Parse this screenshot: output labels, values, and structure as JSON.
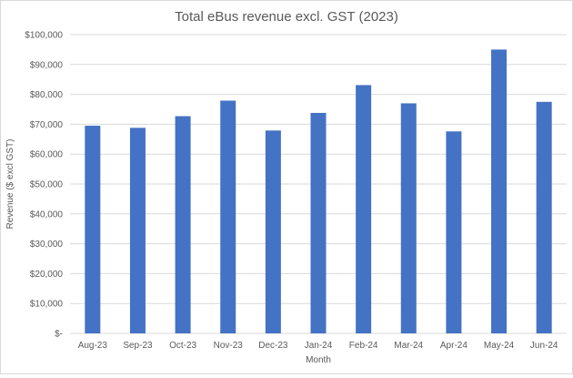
{
  "chart_data": {
    "type": "bar",
    "title": "Total eBus revenue excl. GST (2023)",
    "xlabel": "Month",
    "ylabel": "Revenue ($ excl GST)",
    "ylim": [
      0,
      100000
    ],
    "yticks": [
      0,
      10000,
      20000,
      30000,
      40000,
      50000,
      60000,
      70000,
      80000,
      90000,
      100000
    ],
    "ytick_labels": [
      "$-",
      "$10,000",
      "$20,000",
      "$30,000",
      "$40,000",
      "$50,000",
      "$60,000",
      "$70,000",
      "$80,000",
      "$90,000",
      "$100,000"
    ],
    "grid": true,
    "legend": "none",
    "categories": [
      "Aug-23",
      "Sep-23",
      "Oct-23",
      "Nov-23",
      "Dec-23",
      "Jan-24",
      "Feb-24",
      "Mar-24",
      "Apr-24",
      "May-24",
      "Jun-24"
    ],
    "values": [
      69500,
      68800,
      72700,
      77900,
      67900,
      73800,
      83100,
      77000,
      67600,
      95000,
      77500
    ],
    "colors": {
      "bar": "#4472c4",
      "grid": "#d9d9d9",
      "axis_text": "#595959",
      "title": "#595959"
    }
  }
}
